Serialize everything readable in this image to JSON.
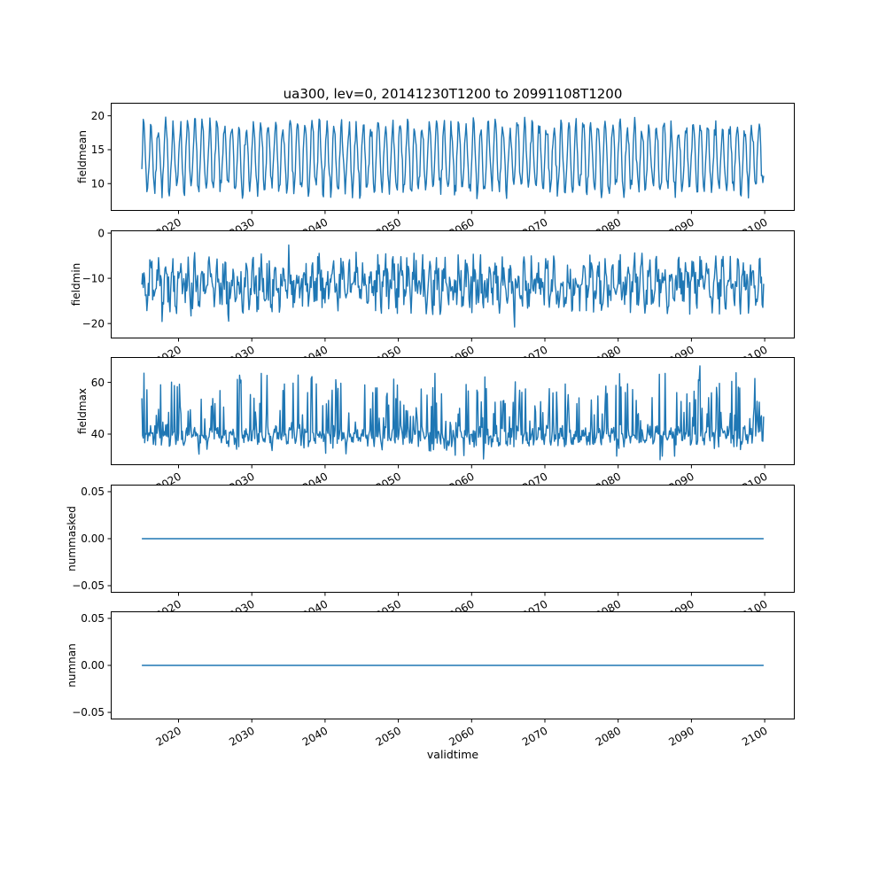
{
  "figure": {
    "title": "ua300, lev=0, 20141230T1200 to 20991108T1200",
    "xlabel": "validtime",
    "line_color": "#1f77b4",
    "background": "#ffffff",
    "x": {
      "start": 2014.99,
      "end": 2099.85,
      "xlim": [
        2010.75,
        2104.1
      ],
      "xticks": [
        2020,
        2030,
        2040,
        2050,
        2060,
        2070,
        2080,
        2090,
        2100
      ],
      "xtick_labels": [
        "2020",
        "2030",
        "2040",
        "2050",
        "2060",
        "2070",
        "2080",
        "2090",
        "2100"
      ]
    }
  },
  "chart_data": [
    {
      "type": "line",
      "name": "fieldmean",
      "ylabel": "fieldmean",
      "ylim": [
        5.98,
        21.92
      ],
      "yticks": [
        10,
        15,
        20
      ],
      "ytick_labels": [
        "10",
        "15",
        "20"
      ],
      "series": {
        "kind": "seasonal_noise",
        "seed": 7,
        "n": 860,
        "base": 13.8,
        "seasonal_amplitude": 4.7,
        "noise": 1.4,
        "period_years": 1,
        "observed_min": 6.7,
        "observed_max": 21.2
      }
    },
    {
      "type": "line",
      "name": "fieldmin",
      "ylabel": "fieldmin",
      "ylim": [
        -23.3,
        0.6
      ],
      "yticks": [
        0,
        -10,
        -20
      ],
      "ytick_labels": [
        "0",
        "−10",
        "−20"
      ],
      "series": {
        "kind": "seasonal_noise",
        "seed": 11,
        "n": 860,
        "base": -11.3,
        "seasonal_amplitude": 3.0,
        "noise": 4.2,
        "period_years": 1,
        "spike_up": {
          "p": 0.008,
          "min": 2.5,
          "max": 6.0
        },
        "spike_down": {
          "p": 0.04,
          "min": 1.0,
          "max": 4.0
        },
        "observed_min": -22.5,
        "observed_max": -0.3
      }
    },
    {
      "type": "line",
      "name": "fieldmax",
      "ylabel": "fieldmax",
      "ylim": [
        28.0,
        69.8
      ],
      "yticks": [
        40,
        60
      ],
      "ytick_labels": [
        "40",
        "60"
      ],
      "series": {
        "kind": "seasonal_noise",
        "seed": 23,
        "n": 860,
        "base": 39.3,
        "seasonal_amplitude": 2.0,
        "noise": 2.4,
        "period_years": 1,
        "spike_up": {
          "p": 0.2,
          "min": 4.0,
          "max": 24.0
        },
        "spike_down": {
          "p": 0.06,
          "min": 2.0,
          "max": 6.0
        },
        "observed_min": 31.0,
        "observed_max": 68.0
      }
    },
    {
      "type": "line",
      "name": "nummasked",
      "ylabel": "nummasked",
      "ylim": [
        -0.0575,
        0.0575
      ],
      "yticks": [
        0.05,
        0.0,
        -0.05
      ],
      "ytick_labels": [
        "0.05",
        "0.00",
        "−0.05"
      ],
      "series": {
        "kind": "constant",
        "value": 0
      }
    },
    {
      "type": "line",
      "name": "numnan",
      "ylabel": "numnan",
      "ylim": [
        -0.0575,
        0.0575
      ],
      "yticks": [
        0.05,
        0.0,
        -0.05
      ],
      "ytick_labels": [
        "0.05",
        "0.00",
        "−0.05"
      ],
      "series": {
        "kind": "constant",
        "value": 0
      }
    }
  ]
}
